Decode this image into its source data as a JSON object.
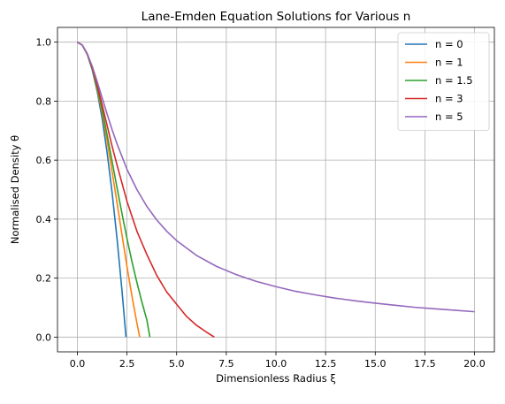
{
  "chart_data": {
    "type": "line",
    "title": "Lane-Emden Equation Solutions for Various n",
    "xlabel": "Dimensionless Radius ξ",
    "ylabel": "Normalised Density θ",
    "xlim": [
      -1.0,
      21.0
    ],
    "ylim": [
      -0.05,
      1.05
    ],
    "xticks": [
      0.0,
      2.5,
      5.0,
      7.5,
      10.0,
      12.5,
      15.0,
      17.5,
      20.0
    ],
    "xtick_labels": [
      "0.0",
      "2.5",
      "5.0",
      "7.5",
      "10.0",
      "12.5",
      "15.0",
      "17.5",
      "20.0"
    ],
    "yticks": [
      0.0,
      0.2,
      0.4,
      0.6,
      0.8,
      1.0
    ],
    "ytick_labels": [
      "0.0",
      "0.2",
      "0.4",
      "0.6",
      "0.8",
      "1.0"
    ],
    "grid": true,
    "legend_position": "top-right",
    "series": [
      {
        "name": "n = 0",
        "color": "#1f77b4",
        "x": [
          0.0,
          0.25,
          0.5,
          0.75,
          1.0,
          1.25,
          1.5,
          1.75,
          2.0,
          2.25,
          2.449
        ],
        "y": [
          1.0,
          0.99,
          0.958,
          0.906,
          0.833,
          0.74,
          0.625,
          0.49,
          0.333,
          0.156,
          0.0
        ]
      },
      {
        "name": "n = 1",
        "color": "#ff7f0e",
        "x": [
          0.0,
          0.25,
          0.5,
          0.75,
          1.0,
          1.25,
          1.5,
          1.75,
          2.0,
          2.25,
          2.5,
          2.75,
          3.0,
          3.1416
        ],
        "y": [
          1.0,
          0.99,
          0.959,
          0.909,
          0.841,
          0.759,
          0.665,
          0.561,
          0.455,
          0.346,
          0.239,
          0.139,
          0.047,
          0.0
        ]
      },
      {
        "name": "n = 1.5",
        "color": "#2ca02c",
        "x": [
          0.0,
          0.25,
          0.5,
          0.75,
          1.0,
          1.25,
          1.5,
          1.75,
          2.0,
          2.25,
          2.5,
          2.75,
          3.0,
          3.25,
          3.5,
          3.6538
        ],
        "y": [
          1.0,
          0.99,
          0.959,
          0.91,
          0.846,
          0.77,
          0.685,
          0.596,
          0.506,
          0.418,
          0.334,
          0.256,
          0.185,
          0.119,
          0.058,
          0.0
        ]
      },
      {
        "name": "n = 3",
        "color": "#d62728",
        "x": [
          0.0,
          0.25,
          0.5,
          0.75,
          1.0,
          1.25,
          1.5,
          1.75,
          2.0,
          2.5,
          3.0,
          3.5,
          4.0,
          4.5,
          5.0,
          5.5,
          6.0,
          6.5,
          6.897
        ],
        "y": [
          1.0,
          0.99,
          0.96,
          0.913,
          0.855,
          0.787,
          0.717,
          0.647,
          0.583,
          0.46,
          0.359,
          0.28,
          0.209,
          0.153,
          0.111,
          0.07,
          0.04,
          0.017,
          0.0
        ]
      },
      {
        "name": "n = 5",
        "color": "#9467bd",
        "x": [
          0.0,
          0.25,
          0.5,
          0.75,
          1.0,
          1.25,
          1.5,
          1.75,
          2.0,
          2.5,
          3.0,
          3.5,
          4.0,
          4.5,
          5.0,
          6.0,
          7.0,
          8.0,
          9.0,
          10.0,
          11.0,
          12.0,
          13.0,
          14.0,
          15.0,
          16.0,
          17.0,
          18.0,
          19.0,
          20.0
        ],
        "y": [
          1.0,
          0.99,
          0.961,
          0.918,
          0.866,
          0.811,
          0.756,
          0.703,
          0.655,
          0.569,
          0.5,
          0.443,
          0.397,
          0.359,
          0.327,
          0.277,
          0.24,
          0.212,
          0.189,
          0.171,
          0.155,
          0.143,
          0.132,
          0.123,
          0.115,
          0.108,
          0.101,
          0.096,
          0.091,
          0.086
        ]
      }
    ]
  }
}
